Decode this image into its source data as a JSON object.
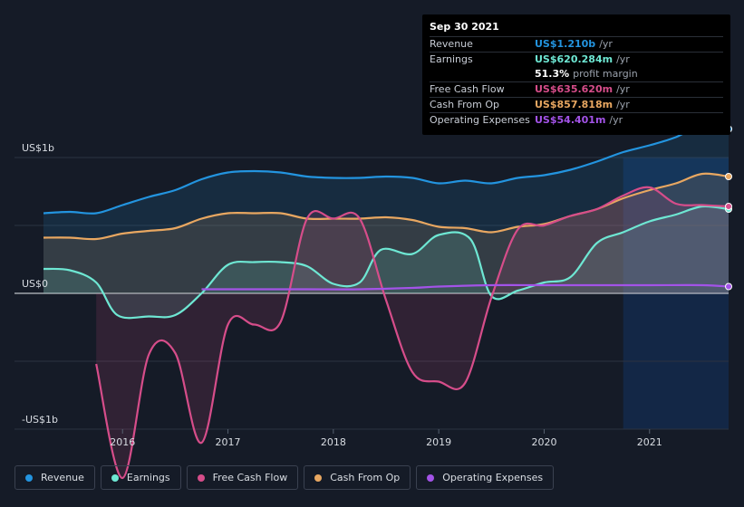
{
  "tooltip": {
    "date": "Sep 30 2021",
    "rows": [
      {
        "label": "Revenue",
        "value": "US$1.210b",
        "unit": "/yr",
        "color": "#2394df"
      },
      {
        "label": "Earnings",
        "value": "US$620.284m",
        "unit": "/yr",
        "color": "#6ee7d3"
      },
      {
        "label": "",
        "value": "51.3%",
        "unit": "profit margin",
        "color": "#ffffff"
      },
      {
        "label": "Free Cash Flow",
        "value": "US$635.620m",
        "unit": "/yr",
        "color": "#d64d8a"
      },
      {
        "label": "Cash From Op",
        "value": "US$857.818m",
        "unit": "/yr",
        "color": "#e8a761"
      },
      {
        "label": "Operating Expenses",
        "value": "US$54.401m",
        "unit": "/yr",
        "color": "#a353e8"
      }
    ]
  },
  "legend": [
    {
      "label": "Revenue",
      "color": "#2394df"
    },
    {
      "label": "Earnings",
      "color": "#6ee7d3"
    },
    {
      "label": "Free Cash Flow",
      "color": "#d64d8a"
    },
    {
      "label": "Cash From Op",
      "color": "#e8a761"
    },
    {
      "label": "Operating Expenses",
      "color": "#a353e8"
    }
  ],
  "chart_data": {
    "type": "area",
    "ylabels": {
      "top": "US$1b",
      "zero": "US$0",
      "bottom": "-US$1b"
    },
    "ylim": [
      -1.4,
      1.4
    ],
    "xlim": [
      2015.25,
      2021.75
    ],
    "highlight_start": 2020.75,
    "xticks": [
      {
        "value": 2016,
        "label": "2016"
      },
      {
        "value": 2017,
        "label": "2017"
      },
      {
        "value": 2018,
        "label": "2018"
      },
      {
        "value": 2019,
        "label": "2019"
      },
      {
        "value": 2020,
        "label": "2020"
      },
      {
        "value": 2021,
        "label": "2021"
      }
    ],
    "series": [
      {
        "name": "Revenue",
        "color": "#2394df",
        "fill": true,
        "points": [
          [
            2015.25,
            0.59
          ],
          [
            2015.5,
            0.6
          ],
          [
            2015.75,
            0.59
          ],
          [
            2016.0,
            0.65
          ],
          [
            2016.25,
            0.71
          ],
          [
            2016.5,
            0.76
          ],
          [
            2016.75,
            0.84
          ],
          [
            2017.0,
            0.89
          ],
          [
            2017.25,
            0.9
          ],
          [
            2017.5,
            0.89
          ],
          [
            2017.75,
            0.86
          ],
          [
            2018.0,
            0.85
          ],
          [
            2018.25,
            0.85
          ],
          [
            2018.5,
            0.86
          ],
          [
            2018.75,
            0.85
          ],
          [
            2019.0,
            0.81
          ],
          [
            2019.25,
            0.83
          ],
          [
            2019.5,
            0.81
          ],
          [
            2019.75,
            0.85
          ],
          [
            2020.0,
            0.87
          ],
          [
            2020.25,
            0.91
          ],
          [
            2020.5,
            0.97
          ],
          [
            2020.75,
            1.04
          ],
          [
            2021.0,
            1.09
          ],
          [
            2021.25,
            1.15
          ],
          [
            2021.5,
            1.24
          ],
          [
            2021.75,
            1.21
          ]
        ]
      },
      {
        "name": "Cash From Op",
        "color": "#e8a761",
        "fill": true,
        "points": [
          [
            2015.25,
            0.41
          ],
          [
            2015.5,
            0.41
          ],
          [
            2015.75,
            0.4
          ],
          [
            2016.0,
            0.44
          ],
          [
            2016.25,
            0.46
          ],
          [
            2016.5,
            0.48
          ],
          [
            2016.75,
            0.55
          ],
          [
            2017.0,
            0.59
          ],
          [
            2017.25,
            0.59
          ],
          [
            2017.5,
            0.59
          ],
          [
            2017.75,
            0.55
          ],
          [
            2018.0,
            0.55
          ],
          [
            2018.25,
            0.55
          ],
          [
            2018.5,
            0.56
          ],
          [
            2018.75,
            0.54
          ],
          [
            2019.0,
            0.49
          ],
          [
            2019.25,
            0.48
          ],
          [
            2019.5,
            0.45
          ],
          [
            2019.75,
            0.49
          ],
          [
            2020.0,
            0.51
          ],
          [
            2020.25,
            0.57
          ],
          [
            2020.5,
            0.62
          ],
          [
            2020.75,
            0.7
          ],
          [
            2021.0,
            0.76
          ],
          [
            2021.25,
            0.81
          ],
          [
            2021.5,
            0.88
          ],
          [
            2021.75,
            0.86
          ]
        ]
      },
      {
        "name": "Earnings",
        "color": "#6ee7d3",
        "fill": true,
        "points": [
          [
            2015.25,
            0.18
          ],
          [
            2015.5,
            0.17
          ],
          [
            2015.75,
            0.08
          ],
          [
            2015.95,
            -0.16
          ],
          [
            2016.25,
            -0.17
          ],
          [
            2016.5,
            -0.16
          ],
          [
            2016.75,
            0.0
          ],
          [
            2017.0,
            0.21
          ],
          [
            2017.25,
            0.23
          ],
          [
            2017.5,
            0.23
          ],
          [
            2017.75,
            0.2
          ],
          [
            2018.0,
            0.07
          ],
          [
            2018.25,
            0.08
          ],
          [
            2018.45,
            0.32
          ],
          [
            2018.75,
            0.29
          ],
          [
            2019.0,
            0.43
          ],
          [
            2019.3,
            0.4
          ],
          [
            2019.5,
            -0.02
          ],
          [
            2019.75,
            0.02
          ],
          [
            2020.0,
            0.08
          ],
          [
            2020.25,
            0.12
          ],
          [
            2020.5,
            0.37
          ],
          [
            2020.75,
            0.45
          ],
          [
            2021.0,
            0.53
          ],
          [
            2021.25,
            0.58
          ],
          [
            2021.5,
            0.64
          ],
          [
            2021.75,
            0.62
          ]
        ]
      },
      {
        "name": "Free Cash Flow",
        "color": "#d64d8a",
        "fill": true,
        "start": 2015.75,
        "points": [
          [
            2015.75,
            -0.52
          ],
          [
            2016.0,
            -1.36
          ],
          [
            2016.25,
            -0.45
          ],
          [
            2016.5,
            -0.44
          ],
          [
            2016.75,
            -1.1
          ],
          [
            2017.0,
            -0.23
          ],
          [
            2017.25,
            -0.23
          ],
          [
            2017.5,
            -0.21
          ],
          [
            2017.75,
            0.55
          ],
          [
            2018.0,
            0.55
          ],
          [
            2018.25,
            0.55
          ],
          [
            2018.5,
            -0.05
          ],
          [
            2018.75,
            -0.58
          ],
          [
            2019.0,
            -0.65
          ],
          [
            2019.25,
            -0.66
          ],
          [
            2019.5,
            -0.03
          ],
          [
            2019.75,
            0.47
          ],
          [
            2020.0,
            0.5
          ],
          [
            2020.25,
            0.57
          ],
          [
            2020.5,
            0.62
          ],
          [
            2020.75,
            0.72
          ],
          [
            2021.0,
            0.78
          ],
          [
            2021.25,
            0.66
          ],
          [
            2021.5,
            0.65
          ],
          [
            2021.75,
            0.64
          ]
        ]
      },
      {
        "name": "Operating Expenses",
        "color": "#a353e8",
        "fill": false,
        "start": 2016.75,
        "points": [
          [
            2016.75,
            0.03
          ],
          [
            2017.25,
            0.03
          ],
          [
            2017.75,
            0.03
          ],
          [
            2018.25,
            0.03
          ],
          [
            2018.75,
            0.04
          ],
          [
            2019.0,
            0.05
          ],
          [
            2019.5,
            0.06
          ],
          [
            2020.0,
            0.06
          ],
          [
            2020.5,
            0.06
          ],
          [
            2021.0,
            0.06
          ],
          [
            2021.5,
            0.06
          ],
          [
            2021.75,
            0.05
          ]
        ]
      }
    ]
  }
}
